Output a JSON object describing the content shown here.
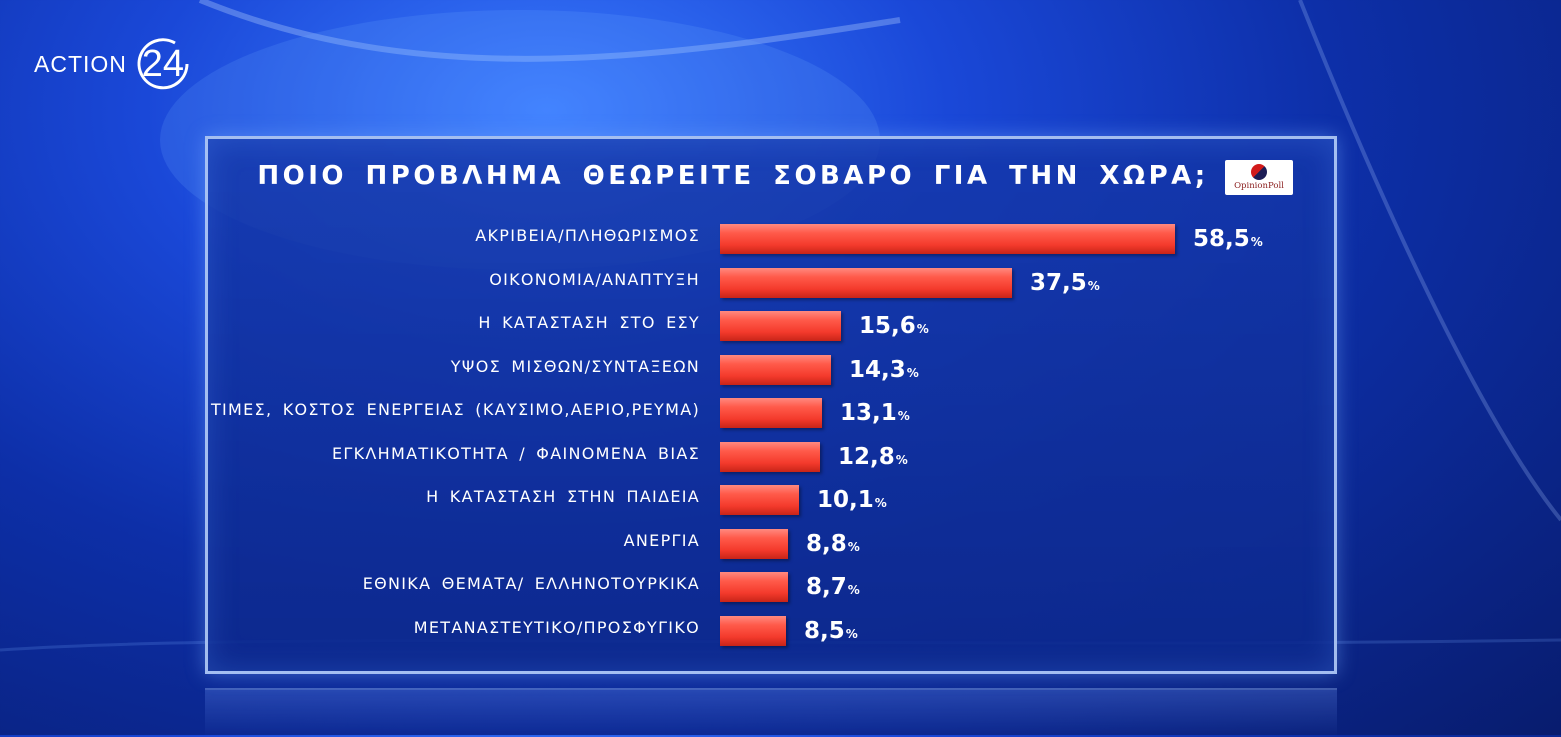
{
  "channel": {
    "name": "ACTION",
    "number": "24"
  },
  "poll_brand": "OpinionPoll",
  "chart_data": {
    "type": "bar",
    "orientation": "horizontal",
    "title": "ΠΟΙΟ ΠΡΟΒΛΗΜΑ ΘΕΩΡΕΙΤΕ ΣΟΒΑΡΟ ΓΙΑ ΤΗΝ ΧΩΡΑ;",
    "categories": [
      "ΑΚΡΙΒΕΙΑ/ΠΛΗΘΩΡΙΣΜΟΣ",
      "ΟΙΚΟΝΟΜΙΑ/ΑΝΑΠΤΥΞΗ",
      "Η ΚΑΤΑΣΤΑΣΗ ΣΤΟ ΕΣΥ",
      "ΥΨΟΣ ΜΙΣΘΩΝ/ΣΥΝΤΑΞΕΩΝ",
      "ΤΙΜΕΣ, ΚΟΣΤΟΣ ΕΝΕΡΓΕΙΑΣ (ΚΑΥΣΙΜΟ,ΑΕΡΙΟ,ΡΕΥΜΑ)",
      "ΕΓΚΛΗΜΑΤΙΚΟΤΗΤΑ / ΦΑΙΝΟΜΕΝΑ ΒΙΑΣ",
      "Η ΚΑΤΑΣΤΑΣΗ ΣΤΗΝ ΠΑΙΔΕΙΑ",
      "ΑΝΕΡΓΙΑ",
      "ΕΘΝΙΚΑ ΘΕΜΑΤΑ/ ΕΛΛΗΝΟΤΟΥΡΚΙΚΑ",
      "ΜΕΤΑΝΑΣΤΕΥΤΙΚΟ/ΠΡΟΣΦΥΓΙΚΟ"
    ],
    "values": [
      58.5,
      37.5,
      15.6,
      14.3,
      13.1,
      12.8,
      10.1,
      8.8,
      8.7,
      8.5
    ],
    "value_labels": [
      "58,5",
      "37,5",
      "15,6",
      "14,3",
      "13,1",
      "12,8",
      "10,1",
      "8,8",
      "8,7",
      "8,5"
    ],
    "unit": "%",
    "xlim": [
      0,
      60
    ],
    "bar_color": "#f43a2c",
    "grid": false,
    "legend": "none"
  }
}
